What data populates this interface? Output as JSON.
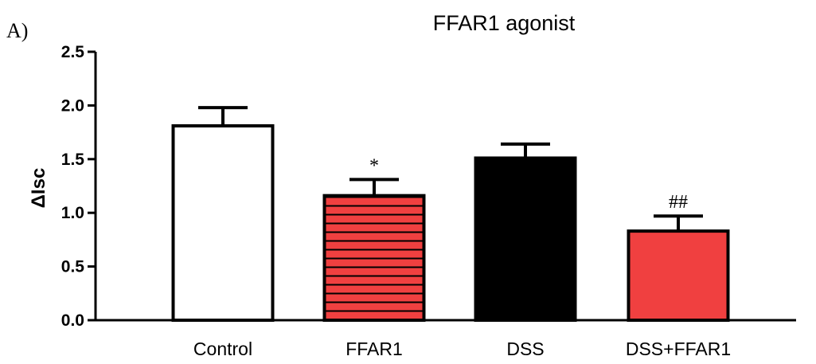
{
  "panel_label": "A)",
  "chart_data": {
    "type": "bar",
    "title": "FFAR1 agonist",
    "xlabel": "",
    "ylabel": "ΔIsc",
    "ylim": [
      0,
      2.5
    ],
    "yticks": [
      "0.0",
      "0.5",
      "1.0",
      "1.5",
      "2.0",
      "2.5"
    ],
    "categories": [
      "Control",
      "FFAR1",
      "DSS",
      "DSS+FFAR1"
    ],
    "values": [
      1.81,
      1.16,
      1.51,
      0.83
    ],
    "errors": [
      0.17,
      0.15,
      0.13,
      0.14
    ],
    "annotations": [
      "",
      "*",
      "",
      "##"
    ],
    "fills": [
      "white",
      "red-striped",
      "black",
      "red"
    ],
    "colors": {
      "red": "#f04040",
      "black": "#000000",
      "white": "#ffffff",
      "stripe": "#000000"
    },
    "grid": false,
    "legend": "none"
  }
}
